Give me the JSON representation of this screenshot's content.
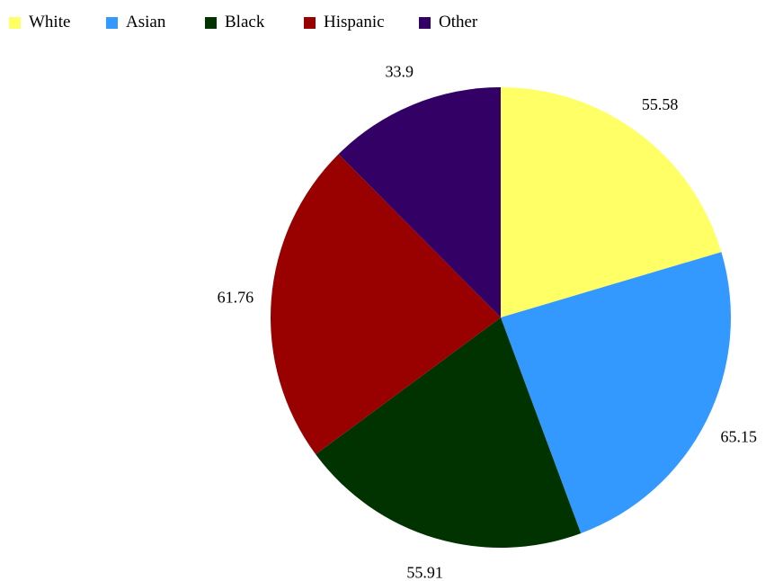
{
  "chart_data": {
    "type": "pie",
    "start_angle": "12-o'clock",
    "direction": "clockwise",
    "legend_position": "top-left",
    "slices": [
      {
        "name": "White",
        "value": 55.58,
        "label": "55.58",
        "color": "#FFFF66"
      },
      {
        "name": "Asian",
        "value": 65.15,
        "label": "65.15",
        "color": "#3399FF"
      },
      {
        "name": "Black",
        "value": 55.91,
        "label": "55.91",
        "color": "#003300"
      },
      {
        "name": "Hispanic",
        "value": 61.76,
        "label": "61.76",
        "color": "#990000"
      },
      {
        "name": "Other",
        "value": 33.9,
        "label": "33.9",
        "color": "#330066"
      }
    ]
  }
}
